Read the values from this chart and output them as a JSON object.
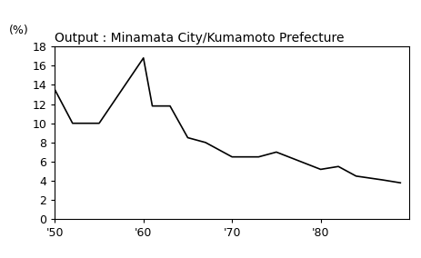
{
  "title": "Output : Minamata City∕Kumamoto Prefecture",
  "ylabel": "(%)",
  "xlim": [
    1950,
    1990
  ],
  "ylim": [
    0,
    18
  ],
  "yticks": [
    0,
    2,
    4,
    6,
    8,
    10,
    12,
    14,
    16,
    18
  ],
  "xtick_positions": [
    1950,
    1960,
    1970,
    1980
  ],
  "xtick_labels": [
    "'50",
    "'60",
    "'70",
    "'80"
  ],
  "x": [
    1950,
    1952,
    1955,
    1960,
    1961,
    1963,
    1965,
    1967,
    1970,
    1973,
    1975,
    1980,
    1982,
    1984,
    1987,
    1989
  ],
  "y": [
    13.5,
    10.0,
    10.0,
    16.8,
    11.8,
    11.8,
    8.5,
    8.0,
    6.5,
    6.5,
    7.0,
    5.2,
    5.5,
    4.5,
    4.1,
    3.8
  ],
  "line_color": "#000000",
  "line_width": 1.2,
  "background_color": "#ffffff",
  "title_fontsize": 10,
  "ylabel_fontsize": 9,
  "tick_fontsize": 9
}
